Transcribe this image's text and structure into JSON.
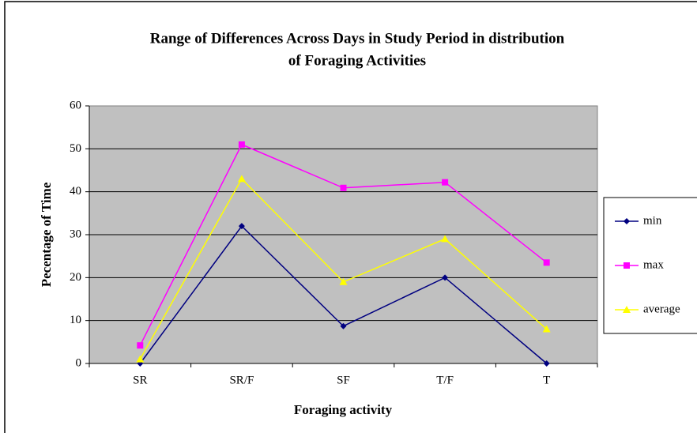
{
  "chart_data": {
    "type": "line",
    "title": [
      "Range of Differences Across Days in Study Period in distribution",
      "of Foraging Activities"
    ],
    "xlabel": "Foraging activity",
    "ylabel": "Pecentage of Time",
    "categories": [
      "SR",
      "SR/F",
      "SF",
      "T/F",
      "T"
    ],
    "series": [
      {
        "name": "min",
        "color": "#000080",
        "marker": "diamond",
        "values": [
          0,
          32,
          8.7,
          20,
          0
        ]
      },
      {
        "name": "max",
        "color": "#ff00ff",
        "marker": "square",
        "values": [
          4.2,
          51,
          40.9,
          42.2,
          23.5
        ]
      },
      {
        "name": "average",
        "color": "#ffff00",
        "marker": "triangle",
        "values": [
          1,
          43,
          19,
          29,
          8
        ]
      }
    ],
    "ylim": [
      0,
      60
    ],
    "yticks": [
      0,
      10,
      20,
      30,
      40,
      50,
      60
    ],
    "grid": true,
    "legend": "right"
  }
}
